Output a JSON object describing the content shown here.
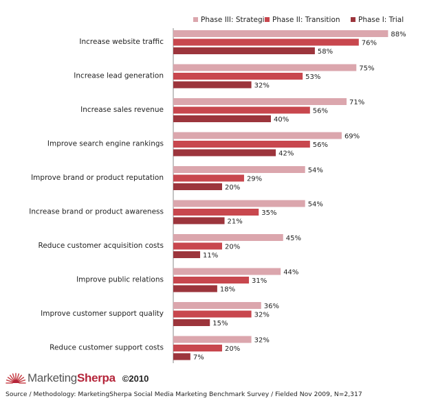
{
  "chart_data": {
    "type": "bar",
    "orientation": "horizontal",
    "title": "",
    "xlabel": "",
    "ylabel": "",
    "xlim": [
      0,
      100
    ],
    "grid": false,
    "legend_position": "top-right",
    "value_suffix": "%",
    "categories": [
      "Increase website traffic",
      "Increase lead generation",
      "Increase sales revenue",
      "Improve search engine rankings",
      "Improve brand or product reputation",
      "Increase brand or product awareness",
      "Reduce customer acquisition costs",
      "Improve public relations",
      "Improve customer support quality",
      "Reduce customer support costs"
    ],
    "series": [
      {
        "name": "Phase III: Strategic",
        "color": "#dba6ad",
        "values": [
          88,
          75,
          71,
          69,
          54,
          54,
          45,
          44,
          36,
          32
        ]
      },
      {
        "name": "Phase II: Transition",
        "color": "#c8474e",
        "values": [
          76,
          53,
          56,
          56,
          29,
          35,
          20,
          31,
          32,
          20
        ]
      },
      {
        "name": "Phase I: Trial",
        "color": "#9c353c",
        "values": [
          58,
          32,
          40,
          42,
          20,
          21,
          11,
          18,
          15,
          7
        ]
      }
    ]
  },
  "footer": {
    "brand_prefix": "Marketing",
    "brand_suffix": "Sherpa",
    "copyright": "©2010",
    "source": "Source / Methodology: MarketingSherpa Social Media Marketing Benchmark Survey / Fielded Nov 2009, N=2,317"
  }
}
